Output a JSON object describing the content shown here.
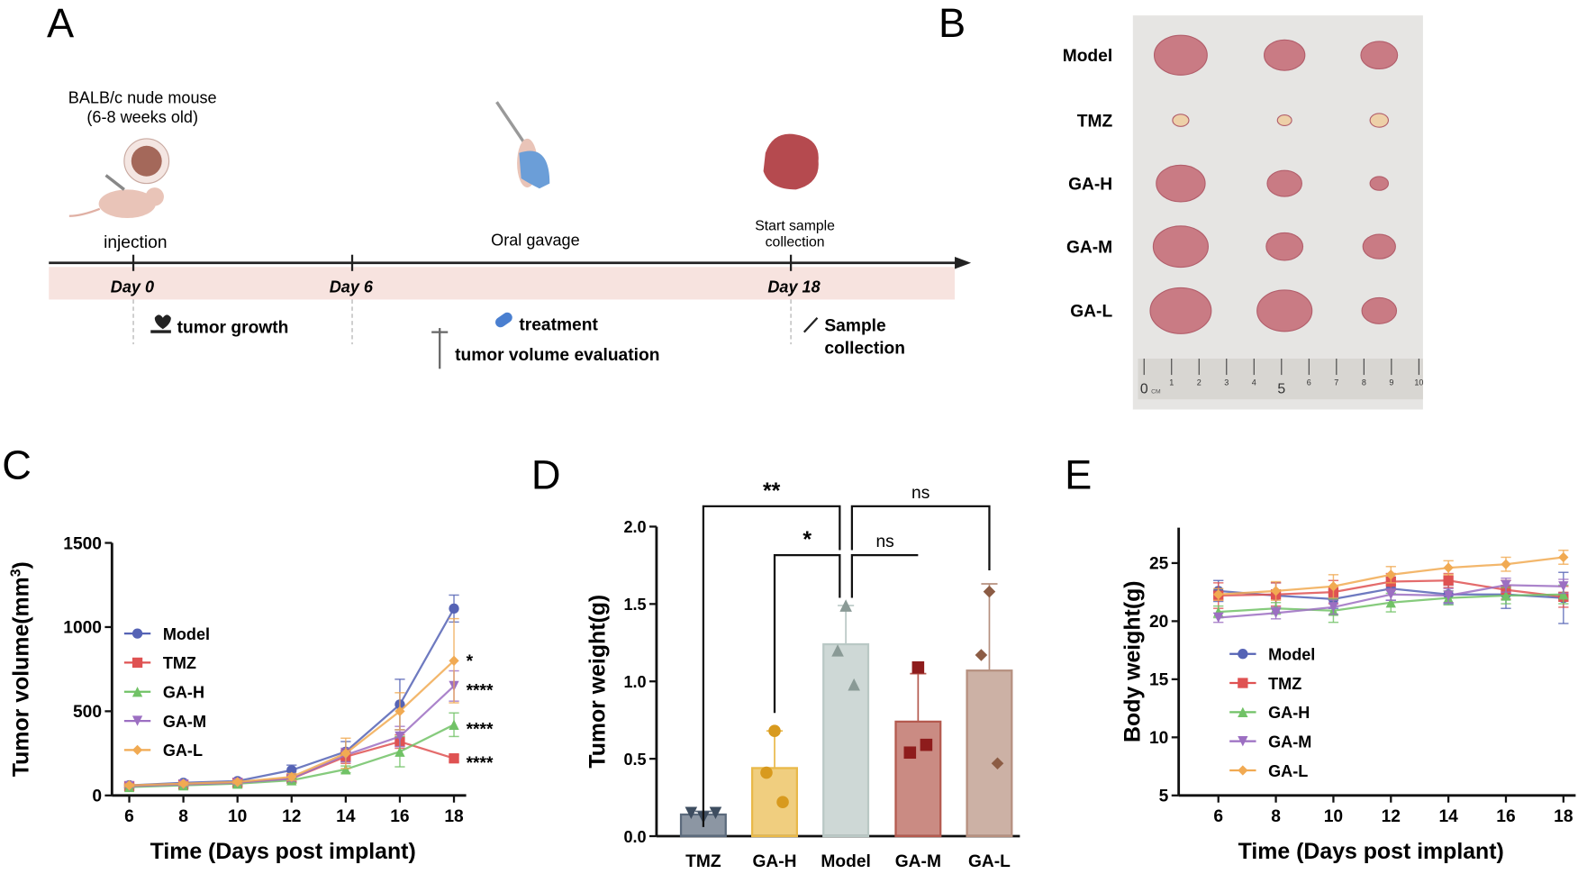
{
  "panels": {
    "a": "A",
    "b": "B",
    "c": "C",
    "d": "D",
    "e": "E"
  },
  "timeline": {
    "mouse_line1": "BALB/c nude mouse",
    "mouse_line2": "(6-8 weeks old)",
    "injection": "injection",
    "oral_gavage": "Oral gavage",
    "start_sample_1": "Start sample",
    "start_sample_2": "collection",
    "days": [
      "Day 0",
      "Day 6",
      "Day 18"
    ],
    "tumor_growth": "tumor growth",
    "treatment": "treatment",
    "tumor_volume": "tumor volume evaluation",
    "sample_1": "Sample",
    "sample_2": "collection"
  },
  "photo": {
    "rows": [
      "Model",
      "TMZ",
      "GA-H",
      "GA-M",
      "GA-L"
    ],
    "ruler": [
      "0",
      "1",
      "2",
      "3",
      "4",
      "5",
      "6",
      "7",
      "8",
      "9",
      "10"
    ],
    "ruler_unit": "CM"
  },
  "colors": {
    "Model": "#5563b5",
    "TMZ": "#df5252",
    "GA-H": "#71c266",
    "GA-M": "#9c6fc2",
    "GA-L": "#f1aa52"
  },
  "chart_data": [
    {
      "type": "line",
      "title": "",
      "xlabel": "Time (Days post implant)",
      "ylabel": "Tumor volume(mm",
      "ylabel_sup": "3",
      "ylabel_close": ")",
      "x": [
        6,
        8,
        10,
        12,
        14,
        16,
        18
      ],
      "xticks": [
        "6",
        "8",
        "10",
        "12",
        "14",
        "16",
        "18"
      ],
      "yticks": [
        "0",
        "500",
        "1000",
        "1500"
      ],
      "ylim": [
        0,
        1500
      ],
      "legend": "left",
      "series": [
        {
          "name": "Model",
          "values": [
            60,
            75,
            85,
            150,
            260,
            540,
            1110
          ],
          "err": [
            10,
            10,
            12,
            30,
            60,
            150,
            80
          ],
          "sig": ""
        },
        {
          "name": "TMZ",
          "values": [
            55,
            65,
            75,
            100,
            230,
            320,
            220
          ],
          "err": [
            8,
            10,
            10,
            20,
            40,
            40,
            20
          ],
          "sig": "****"
        },
        {
          "name": "GA-H",
          "values": [
            50,
            60,
            70,
            90,
            155,
            260,
            420
          ],
          "err": [
            8,
            10,
            10,
            15,
            20,
            90,
            70
          ],
          "sig": "****"
        },
        {
          "name": "GA-M",
          "values": [
            55,
            65,
            75,
            100,
            240,
            350,
            650
          ],
          "err": [
            8,
            10,
            10,
            15,
            40,
            60,
            90
          ],
          "sig": "****"
        },
        {
          "name": "GA-L",
          "values": [
            60,
            70,
            80,
            110,
            250,
            500,
            800
          ],
          "err": [
            8,
            10,
            10,
            20,
            90,
            110,
            250
          ],
          "sig": "*"
        }
      ]
    },
    {
      "type": "bar",
      "xlabel": "",
      "ylabel": "Tumor weight(g)",
      "categories": [
        "TMZ",
        "GA-H",
        "Model",
        "GA-M",
        "GA-L"
      ],
      "values": [
        0.14,
        0.44,
        1.24,
        0.74,
        1.07
      ],
      "err": [
        0.02,
        0.24,
        0.25,
        0.31,
        0.56
      ],
      "points": [
        [
          0.15,
          0.12,
          0.15
        ],
        [
          0.68,
          0.41,
          0.22
        ],
        [
          1.49,
          1.2,
          0.98
        ],
        [
          1.09,
          0.54,
          0.59
        ],
        [
          1.58,
          1.17,
          0.47
        ]
      ],
      "bar_colors": [
        "#5b6a7c",
        "#e9b949",
        "#b9c8c5",
        "#b45a4f",
        "#b6907f"
      ],
      "yticks": [
        "0.0",
        "0.5",
        "1.0",
        "1.5",
        "2.0"
      ],
      "ylim": [
        0,
        2
      ],
      "comparisons": [
        {
          "from": "TMZ",
          "to": "Model",
          "label": "**"
        },
        {
          "from": "Model",
          "to": "GA-L",
          "label": "ns"
        },
        {
          "from": "GA-H",
          "to": "Model",
          "label": "*"
        },
        {
          "from": "Model",
          "to": "GA-M",
          "label": "ns"
        }
      ]
    },
    {
      "type": "line",
      "xlabel": "Time (Days post implant)",
      "ylabel": "Body weight(g)",
      "x": [
        6,
        8,
        10,
        12,
        14,
        16,
        18
      ],
      "xticks": [
        "6",
        "8",
        "10",
        "12",
        "14",
        "16",
        "18"
      ],
      "yticks": [
        "5",
        "10",
        "15",
        "20",
        "25"
      ],
      "ylim": [
        5,
        27
      ],
      "legend": "bottom-left",
      "series": [
        {
          "name": "Model",
          "values": [
            22.6,
            22.2,
            21.9,
            22.8,
            22.3,
            22.3,
            22.0
          ],
          "err": [
            0.9,
            1.1,
            0.8,
            1.0,
            0.8,
            1.2,
            2.2
          ]
        },
        {
          "name": "TMZ",
          "values": [
            22.2,
            22.3,
            22.5,
            23.4,
            23.5,
            22.7,
            22.1
          ],
          "err": [
            1.1,
            1.0,
            1.0,
            0.7,
            0.6,
            0.8,
            0.9
          ]
        },
        {
          "name": "GA-H",
          "values": [
            20.8,
            21.1,
            20.9,
            21.6,
            22.0,
            22.2,
            22.3
          ],
          "err": [
            0.5,
            0.5,
            1.0,
            0.8,
            0.6,
            0.7,
            0.8
          ]
        },
        {
          "name": "GA-M",
          "values": [
            20.3,
            20.7,
            21.2,
            22.3,
            22.2,
            23.1,
            23.0
          ],
          "err": [
            0.4,
            0.5,
            0.6,
            0.5,
            0.6,
            0.6,
            0.6
          ]
        },
        {
          "name": "GA-L",
          "values": [
            22.3,
            22.6,
            23.0,
            24.0,
            24.6,
            24.9,
            25.5
          ],
          "err": [
            0.5,
            0.8,
            1.0,
            0.7,
            0.6,
            0.6,
            0.6
          ]
        }
      ]
    }
  ]
}
